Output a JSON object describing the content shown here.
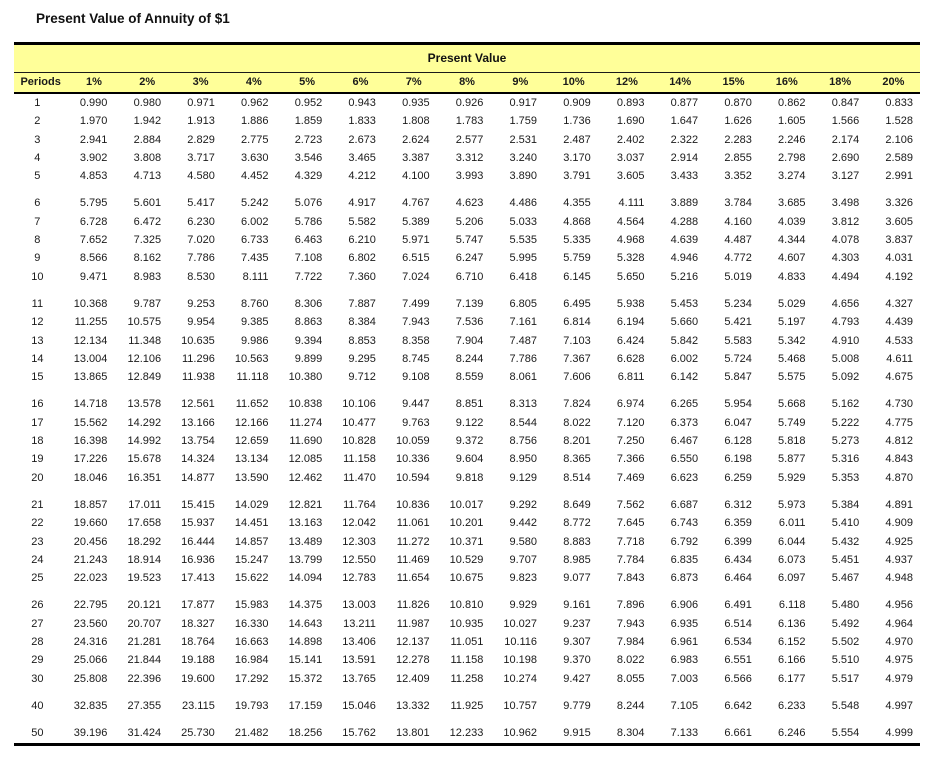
{
  "title": "Present Value of Annuity of $1",
  "colors": {
    "header_background": "#FFFF99",
    "border": "#000000",
    "text": "#1A1A1A"
  },
  "table": {
    "band_label": "Present Value",
    "columns": [
      "Periods",
      "1%",
      "2%",
      "3%",
      "4%",
      "5%",
      "6%",
      "7%",
      "8%",
      "9%",
      "10%",
      "12%",
      "14%",
      "15%",
      "16%",
      "18%",
      "20%"
    ],
    "row_groups": [
      [
        [
          "1",
          "0.990",
          "0.980",
          "0.971",
          "0.962",
          "0.952",
          "0.943",
          "0.935",
          "0.926",
          "0.917",
          "0.909",
          "0.893",
          "0.877",
          "0.870",
          "0.862",
          "0.847",
          "0.833"
        ],
        [
          "2",
          "1.970",
          "1.942",
          "1.913",
          "1.886",
          "1.859",
          "1.833",
          "1.808",
          "1.783",
          "1.759",
          "1.736",
          "1.690",
          "1.647",
          "1.626",
          "1.605",
          "1.566",
          "1.528"
        ],
        [
          "3",
          "2.941",
          "2.884",
          "2.829",
          "2.775",
          "2.723",
          "2.673",
          "2.624",
          "2.577",
          "2.531",
          "2.487",
          "2.402",
          "2.322",
          "2.283",
          "2.246",
          "2.174",
          "2.106"
        ],
        [
          "4",
          "3.902",
          "3.808",
          "3.717",
          "3.630",
          "3.546",
          "3.465",
          "3.387",
          "3.312",
          "3.240",
          "3.170",
          "3.037",
          "2.914",
          "2.855",
          "2.798",
          "2.690",
          "2.589"
        ],
        [
          "5",
          "4.853",
          "4.713",
          "4.580",
          "4.452",
          "4.329",
          "4.212",
          "4.100",
          "3.993",
          "3.890",
          "3.791",
          "3.605",
          "3.433",
          "3.352",
          "3.274",
          "3.127",
          "2.991"
        ]
      ],
      [
        [
          "6",
          "5.795",
          "5.601",
          "5.417",
          "5.242",
          "5.076",
          "4.917",
          "4.767",
          "4.623",
          "4.486",
          "4.355",
          "4.111",
          "3.889",
          "3.784",
          "3.685",
          "3.498",
          "3.326"
        ],
        [
          "7",
          "6.728",
          "6.472",
          "6.230",
          "6.002",
          "5.786",
          "5.582",
          "5.389",
          "5.206",
          "5.033",
          "4.868",
          "4.564",
          "4.288",
          "4.160",
          "4.039",
          "3.812",
          "3.605"
        ],
        [
          "8",
          "7.652",
          "7.325",
          "7.020",
          "6.733",
          "6.463",
          "6.210",
          "5.971",
          "5.747",
          "5.535",
          "5.335",
          "4.968",
          "4.639",
          "4.487",
          "4.344",
          "4.078",
          "3.837"
        ],
        [
          "9",
          "8.566",
          "8.162",
          "7.786",
          "7.435",
          "7.108",
          "6.802",
          "6.515",
          "6.247",
          "5.995",
          "5.759",
          "5.328",
          "4.946",
          "4.772",
          "4.607",
          "4.303",
          "4.031"
        ],
        [
          "10",
          "9.471",
          "8.983",
          "8.530",
          "8.111",
          "7.722",
          "7.360",
          "7.024",
          "6.710",
          "6.418",
          "6.145",
          "5.650",
          "5.216",
          "5.019",
          "4.833",
          "4.494",
          "4.192"
        ]
      ],
      [
        [
          "11",
          "10.368",
          "9.787",
          "9.253",
          "8.760",
          "8.306",
          "7.887",
          "7.499",
          "7.139",
          "6.805",
          "6.495",
          "5.938",
          "5.453",
          "5.234",
          "5.029",
          "4.656",
          "4.327"
        ],
        [
          "12",
          "11.255",
          "10.575",
          "9.954",
          "9.385",
          "8.863",
          "8.384",
          "7.943",
          "7.536",
          "7.161",
          "6.814",
          "6.194",
          "5.660",
          "5.421",
          "5.197",
          "4.793",
          "4.439"
        ],
        [
          "13",
          "12.134",
          "11.348",
          "10.635",
          "9.986",
          "9.394",
          "8.853",
          "8.358",
          "7.904",
          "7.487",
          "7.103",
          "6.424",
          "5.842",
          "5.583",
          "5.342",
          "4.910",
          "4.533"
        ],
        [
          "14",
          "13.004",
          "12.106",
          "11.296",
          "10.563",
          "9.899",
          "9.295",
          "8.745",
          "8.244",
          "7.786",
          "7.367",
          "6.628",
          "6.002",
          "5.724",
          "5.468",
          "5.008",
          "4.611"
        ],
        [
          "15",
          "13.865",
          "12.849",
          "11.938",
          "11.118",
          "10.380",
          "9.712",
          "9.108",
          "8.559",
          "8.061",
          "7.606",
          "6.811",
          "6.142",
          "5.847",
          "5.575",
          "5.092",
          "4.675"
        ]
      ],
      [
        [
          "16",
          "14.718",
          "13.578",
          "12.561",
          "11.652",
          "10.838",
          "10.106",
          "9.447",
          "8.851",
          "8.313",
          "7.824",
          "6.974",
          "6.265",
          "5.954",
          "5.668",
          "5.162",
          "4.730"
        ],
        [
          "17",
          "15.562",
          "14.292",
          "13.166",
          "12.166",
          "11.274",
          "10.477",
          "9.763",
          "9.122",
          "8.544",
          "8.022",
          "7.120",
          "6.373",
          "6.047",
          "5.749",
          "5.222",
          "4.775"
        ],
        [
          "18",
          "16.398",
          "14.992",
          "13.754",
          "12.659",
          "11.690",
          "10.828",
          "10.059",
          "9.372",
          "8.756",
          "8.201",
          "7.250",
          "6.467",
          "6.128",
          "5.818",
          "5.273",
          "4.812"
        ],
        [
          "19",
          "17.226",
          "15.678",
          "14.324",
          "13.134",
          "12.085",
          "11.158",
          "10.336",
          "9.604",
          "8.950",
          "8.365",
          "7.366",
          "6.550",
          "6.198",
          "5.877",
          "5.316",
          "4.843"
        ],
        [
          "20",
          "18.046",
          "16.351",
          "14.877",
          "13.590",
          "12.462",
          "11.470",
          "10.594",
          "9.818",
          "9.129",
          "8.514",
          "7.469",
          "6.623",
          "6.259",
          "5.929",
          "5.353",
          "4.870"
        ]
      ],
      [
        [
          "21",
          "18.857",
          "17.011",
          "15.415",
          "14.029",
          "12.821",
          "11.764",
          "10.836",
          "10.017",
          "9.292",
          "8.649",
          "7.562",
          "6.687",
          "6.312",
          "5.973",
          "5.384",
          "4.891"
        ],
        [
          "22",
          "19.660",
          "17.658",
          "15.937",
          "14.451",
          "13.163",
          "12.042",
          "11.061",
          "10.201",
          "9.442",
          "8.772",
          "7.645",
          "6.743",
          "6.359",
          "6.011",
          "5.410",
          "4.909"
        ],
        [
          "23",
          "20.456",
          "18.292",
          "16.444",
          "14.857",
          "13.489",
          "12.303",
          "11.272",
          "10.371",
          "9.580",
          "8.883",
          "7.718",
          "6.792",
          "6.399",
          "6.044",
          "5.432",
          "4.925"
        ],
        [
          "24",
          "21.243",
          "18.914",
          "16.936",
          "15.247",
          "13.799",
          "12.550",
          "11.469",
          "10.529",
          "9.707",
          "8.985",
          "7.784",
          "6.835",
          "6.434",
          "6.073",
          "5.451",
          "4.937"
        ],
        [
          "25",
          "22.023",
          "19.523",
          "17.413",
          "15.622",
          "14.094",
          "12.783",
          "11.654",
          "10.675",
          "9.823",
          "9.077",
          "7.843",
          "6.873",
          "6.464",
          "6.097",
          "5.467",
          "4.948"
        ]
      ],
      [
        [
          "26",
          "22.795",
          "20.121",
          "17.877",
          "15.983",
          "14.375",
          "13.003",
          "11.826",
          "10.810",
          "9.929",
          "9.161",
          "7.896",
          "6.906",
          "6.491",
          "6.118",
          "5.480",
          "4.956"
        ],
        [
          "27",
          "23.560",
          "20.707",
          "18.327",
          "16.330",
          "14.643",
          "13.211",
          "11.987",
          "10.935",
          "10.027",
          "9.237",
          "7.943",
          "6.935",
          "6.514",
          "6.136",
          "5.492",
          "4.964"
        ],
        [
          "28",
          "24.316",
          "21.281",
          "18.764",
          "16.663",
          "14.898",
          "13.406",
          "12.137",
          "11.051",
          "10.116",
          "9.307",
          "7.984",
          "6.961",
          "6.534",
          "6.152",
          "5.502",
          "4.970"
        ],
        [
          "29",
          "25.066",
          "21.844",
          "19.188",
          "16.984",
          "15.141",
          "13.591",
          "12.278",
          "11.158",
          "10.198",
          "9.370",
          "8.022",
          "6.983",
          "6.551",
          "6.166",
          "5.510",
          "4.975"
        ],
        [
          "30",
          "25.808",
          "22.396",
          "19.600",
          "17.292",
          "15.372",
          "13.765",
          "12.409",
          "11.258",
          "10.274",
          "9.427",
          "8.055",
          "7.003",
          "6.566",
          "6.177",
          "5.517",
          "4.979"
        ]
      ],
      [
        [
          "40",
          "32.835",
          "27.355",
          "23.115",
          "19.793",
          "17.159",
          "15.046",
          "13.332",
          "11.925",
          "10.757",
          "9.779",
          "8.244",
          "7.105",
          "6.642",
          "6.233",
          "5.548",
          "4.997"
        ]
      ],
      [
        [
          "50",
          "39.196",
          "31.424",
          "25.730",
          "21.482",
          "18.256",
          "15.762",
          "13.801",
          "12.233",
          "10.962",
          "9.915",
          "8.304",
          "7.133",
          "6.661",
          "6.246",
          "5.554",
          "4.999"
        ]
      ]
    ]
  }
}
